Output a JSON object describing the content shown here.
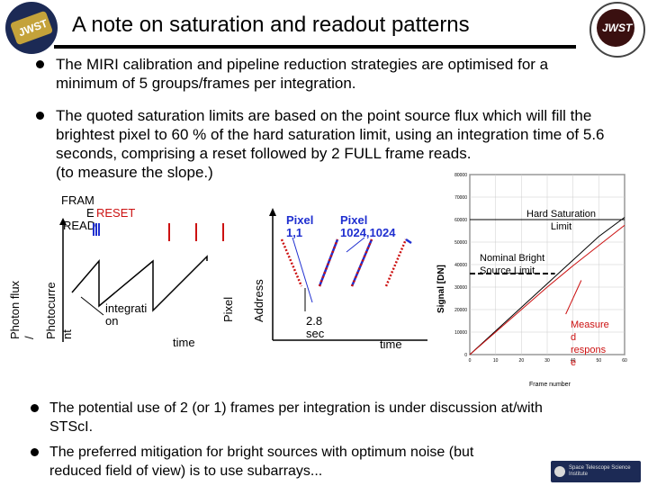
{
  "slide": {
    "title": "A note on saturation and readout patterns",
    "logo_left_text": "JWST",
    "logo_right_text": "JWST"
  },
  "bullets": [
    {
      "line1": "The MIRI calibration and pipeline reduction strategies are optimised for a",
      "line2": "minimum of 5 groups/frames per integration."
    },
    {
      "line1": "The quoted saturation limits are based on the point source flux which will fill the",
      "line2": "brightest pixel to 60 % of the hard saturation limit, using an integration time of 5.6",
      "line3": "seconds, comprising a reset followed by 2 FULL frame reads.",
      "line4": "(to measure the slope.)"
    },
    {
      "line1": "The potential use of 2 (or 1) frames per integration is under discussion at/with",
      "line2": "STScI."
    },
    {
      "line1": "The preferred mitigation for bright sources with optimum noise (but",
      "line2": "reduced field of view) is to use subarrays..."
    }
  ],
  "diagram1": {
    "legend_frame_a": "FRAM",
    "legend_frame_b": "E",
    "legend_reset": "RESET",
    "legend_read": "READ",
    "ylabel_a": "Photon flux",
    "ylabel_b": "/",
    "ylabel_c": "Photocurre",
    "ylabel_d": "nt",
    "integration_a": "integrati",
    "integration_b": "on",
    "time": "time"
  },
  "diagram2": {
    "ylabel_a": "Pixel",
    "ylabel_b": "Address",
    "pixel1_a": "Pixel",
    "pixel1_b": "1,1",
    "pixel2_a": "Pixel",
    "pixel2_b": "1024,1024",
    "sec_a": "2.8",
    "sec_b": "sec",
    "time": "time",
    "colors": {
      "blue": "#1f2fd0",
      "red": "#cc1111"
    }
  },
  "chart_data": {
    "type": "line",
    "title": "",
    "xlabel": "Frame number",
    "ylabel": "Signal [DN]",
    "xlim": [
      0,
      60
    ],
    "ylim": [
      0,
      80000
    ],
    "x_ticks": [
      0,
      10,
      20,
      30,
      40,
      50,
      60
    ],
    "y_ticks": [
      0,
      10000,
      20000,
      30000,
      40000,
      50000,
      60000,
      70000,
      80000
    ],
    "hard_saturation": 60000,
    "nominal_bright": 36000,
    "series": [
      {
        "x": [
          0,
          10,
          20,
          30,
          40,
          50,
          60
        ],
        "values": [
          0,
          10500,
          21000,
          31500,
          42000,
          52500,
          61000
        ]
      },
      {
        "x": [
          0,
          10,
          20,
          30,
          40,
          50,
          60
        ],
        "values": [
          0,
          10000,
          20000,
          30000,
          39500,
          48500,
          57500
        ]
      }
    ],
    "annotations": {
      "hard_a": "Hard Saturation",
      "hard_b": "Limit",
      "nominal_a": "Nominal Bright",
      "nominal_b": "Source Limit",
      "measured_a": "Measure",
      "measured_b": "d",
      "measured_c": "respons",
      "measured_d": "e"
    }
  },
  "footer": {
    "text": "Space Telescope Science Institute"
  }
}
